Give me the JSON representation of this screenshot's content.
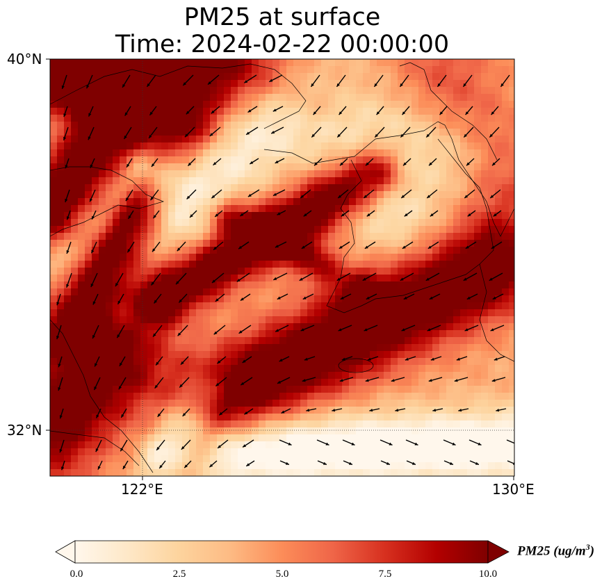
{
  "title": {
    "line1": "PM25 at surface",
    "line2": "Time: 2024-02-22 00:00:00"
  },
  "axes": {
    "lat_ticks": [
      "40°N",
      "32°N"
    ],
    "lon_ticks": [
      "122°E",
      "130°E"
    ],
    "lat_range": [
      31,
      40
    ],
    "lon_range": [
      120,
      130
    ]
  },
  "colorbar": {
    "label_main": "PM25 (ug/m",
    "label_sup": "3",
    "label_close": ")",
    "ticks": [
      "0.0",
      "2.5",
      "5.0",
      "7.5",
      "10.0"
    ],
    "range": [
      0,
      10
    ],
    "extend": "both",
    "colormap": "OrRd",
    "colors": [
      "#fff7ec",
      "#fee8c8",
      "#fdd49e",
      "#fdbb84",
      "#fc8d59",
      "#ef6548",
      "#d7301f",
      "#b30000",
      "#7f0000"
    ]
  },
  "chart_data": {
    "type": "heatmap",
    "variable": "PM25",
    "units": "ug/m3",
    "level": "surface",
    "time": "2024-02-22 00:00:00",
    "lon_range": [
      120,
      130
    ],
    "lat_range": [
      31,
      40
    ],
    "value_range": [
      0,
      10
    ],
    "overlay": "wind vectors",
    "gridlines": "dotted at 122°E and 32°N",
    "high_bands": [
      {
        "region": "northwest corner band",
        "level": 10
      },
      {
        "region": "diagonal band from Yellow Sea to Korea",
        "level": 9.5
      },
      {
        "region": "southern band south of Korea to Kyushu",
        "level": 10
      },
      {
        "region": "southwest coast near Shanghai",
        "level": 10
      }
    ],
    "low_regions": [
      {
        "region": "southeast corner East China Sea",
        "level": 0.5
      },
      {
        "region": "central Yellow Sea",
        "level": 2
      },
      {
        "region": "Korea interior / East Sea",
        "level": 3
      }
    ]
  }
}
